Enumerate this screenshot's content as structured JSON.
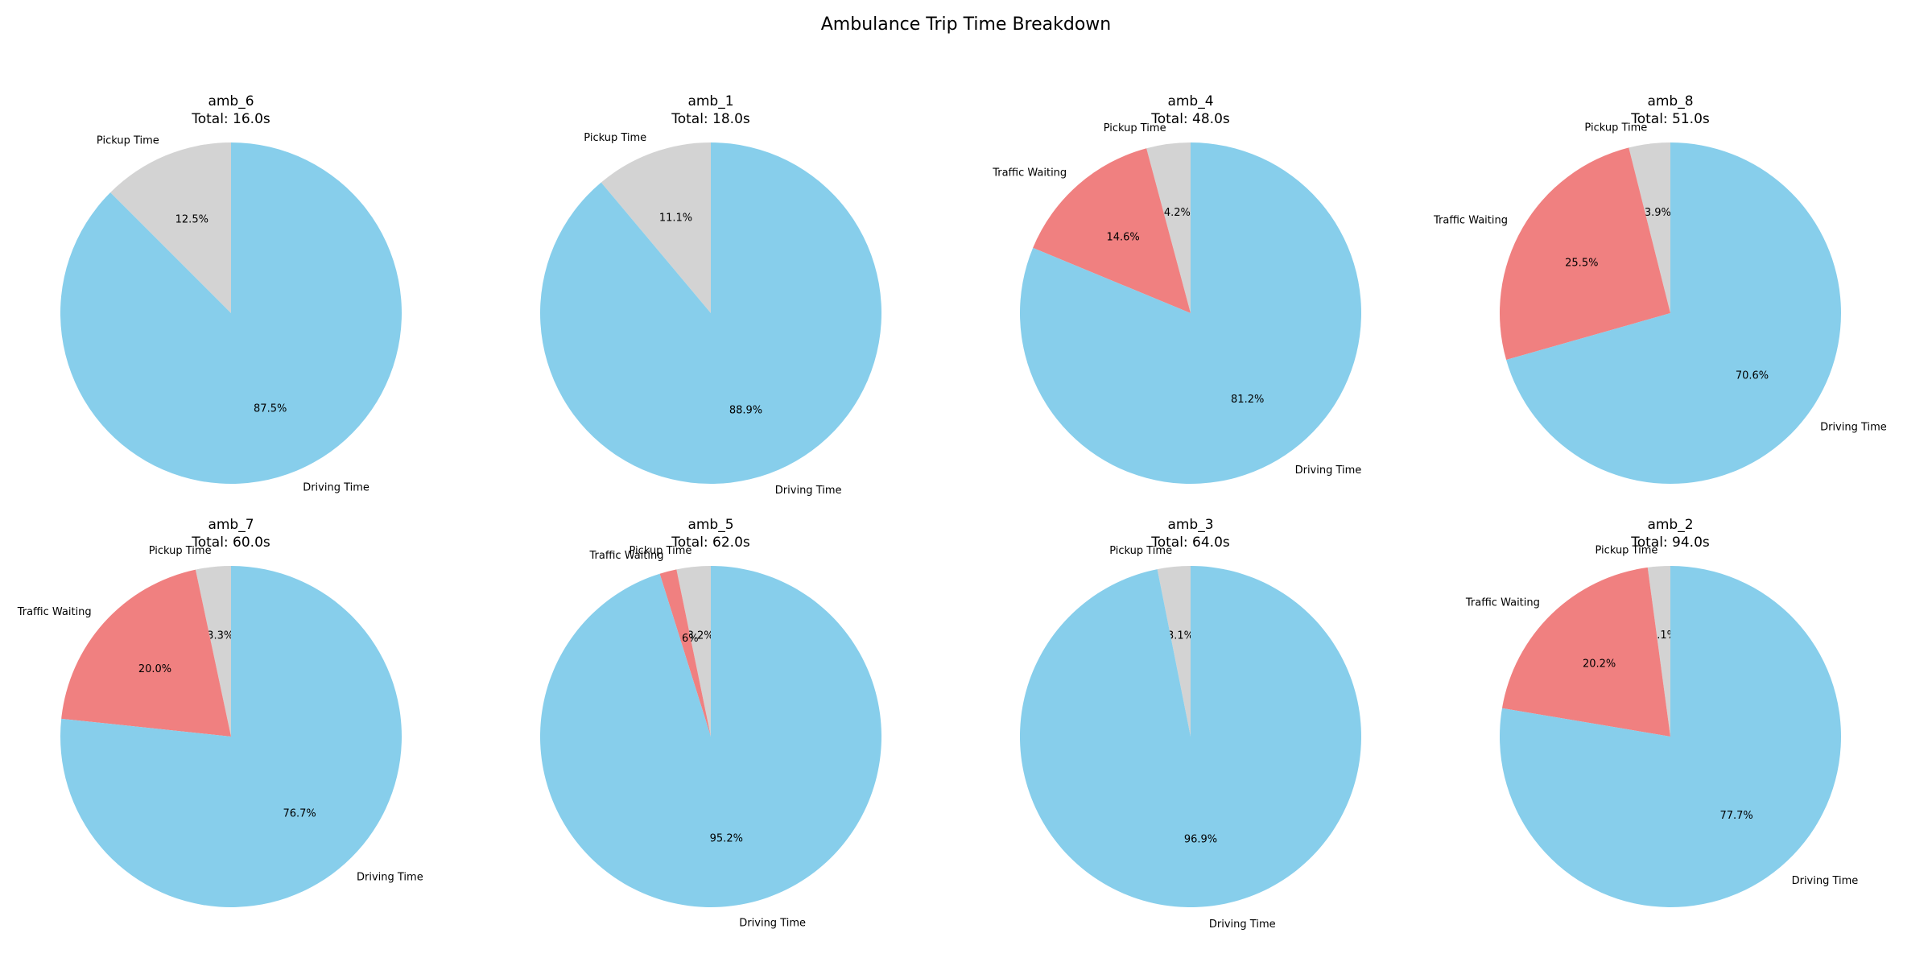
{
  "title": "Ambulance Trip Time Breakdown",
  "colors": {
    "Pickup Time": "#d3d3d3",
    "Traffic Waiting": "#f08080",
    "Driving Time": "#87ceeb"
  },
  "chart_data": [
    {
      "type": "pie",
      "title": "amb_6",
      "subtitle": "Total: 16.0s",
      "slices": [
        {
          "label": "Pickup Time",
          "value": 2,
          "pct": "12.5%"
        },
        {
          "label": "Driving Time",
          "value": 14,
          "pct": "87.5%"
        }
      ]
    },
    {
      "type": "pie",
      "title": "amb_1",
      "subtitle": "Total: 18.0s",
      "slices": [
        {
          "label": "Pickup Time",
          "value": 2,
          "pct": "11.1%"
        },
        {
          "label": "Driving Time",
          "value": 16,
          "pct": "88.9%"
        }
      ]
    },
    {
      "type": "pie",
      "title": "amb_4",
      "subtitle": "Total: 48.0s",
      "slices": [
        {
          "label": "Pickup Time",
          "value": 2,
          "pct": "4.2%"
        },
        {
          "label": "Traffic Waiting",
          "value": 7,
          "pct": "14.6%"
        },
        {
          "label": "Driving Time",
          "value": 39,
          "pct": "81.2%"
        }
      ]
    },
    {
      "type": "pie",
      "title": "amb_8",
      "subtitle": "Total: 51.0s",
      "slices": [
        {
          "label": "Pickup Time",
          "value": 2,
          "pct": "3.9%"
        },
        {
          "label": "Traffic Waiting",
          "value": 13,
          "pct": "25.5%"
        },
        {
          "label": "Driving Time",
          "value": 36,
          "pct": "70.6%"
        }
      ]
    },
    {
      "type": "pie",
      "title": "amb_7",
      "subtitle": "Total: 60.0s",
      "slices": [
        {
          "label": "Pickup Time",
          "value": 2,
          "pct": "3.3%"
        },
        {
          "label": "Traffic Waiting",
          "value": 12,
          "pct": "20.0%"
        },
        {
          "label": "Driving Time",
          "value": 46,
          "pct": "76.7%"
        }
      ]
    },
    {
      "type": "pie",
      "title": "amb_5",
      "subtitle": "Total: 62.0s",
      "slices": [
        {
          "label": "Pickup Time",
          "value": 2,
          "pct": "3.2%"
        },
        {
          "label": "Traffic Waiting",
          "value": 1,
          "pct": "1.6%"
        },
        {
          "label": "Driving Time",
          "value": 59,
          "pct": "95.2%"
        }
      ]
    },
    {
      "type": "pie",
      "title": "amb_3",
      "subtitle": "Total: 64.0s",
      "slices": [
        {
          "label": "Pickup Time",
          "value": 2,
          "pct": "3.1%"
        },
        {
          "label": "Driving Time",
          "value": 62,
          "pct": "96.9%"
        }
      ]
    },
    {
      "type": "pie",
      "title": "amb_2",
      "subtitle": "Total: 94.0s",
      "slices": [
        {
          "label": "Pickup Time",
          "value": 2,
          "pct": "2.1%"
        },
        {
          "label": "Traffic Waiting",
          "value": 19,
          "pct": "20.2%"
        },
        {
          "label": "Driving Time",
          "value": 73,
          "pct": "77.7%"
        }
      ]
    }
  ]
}
